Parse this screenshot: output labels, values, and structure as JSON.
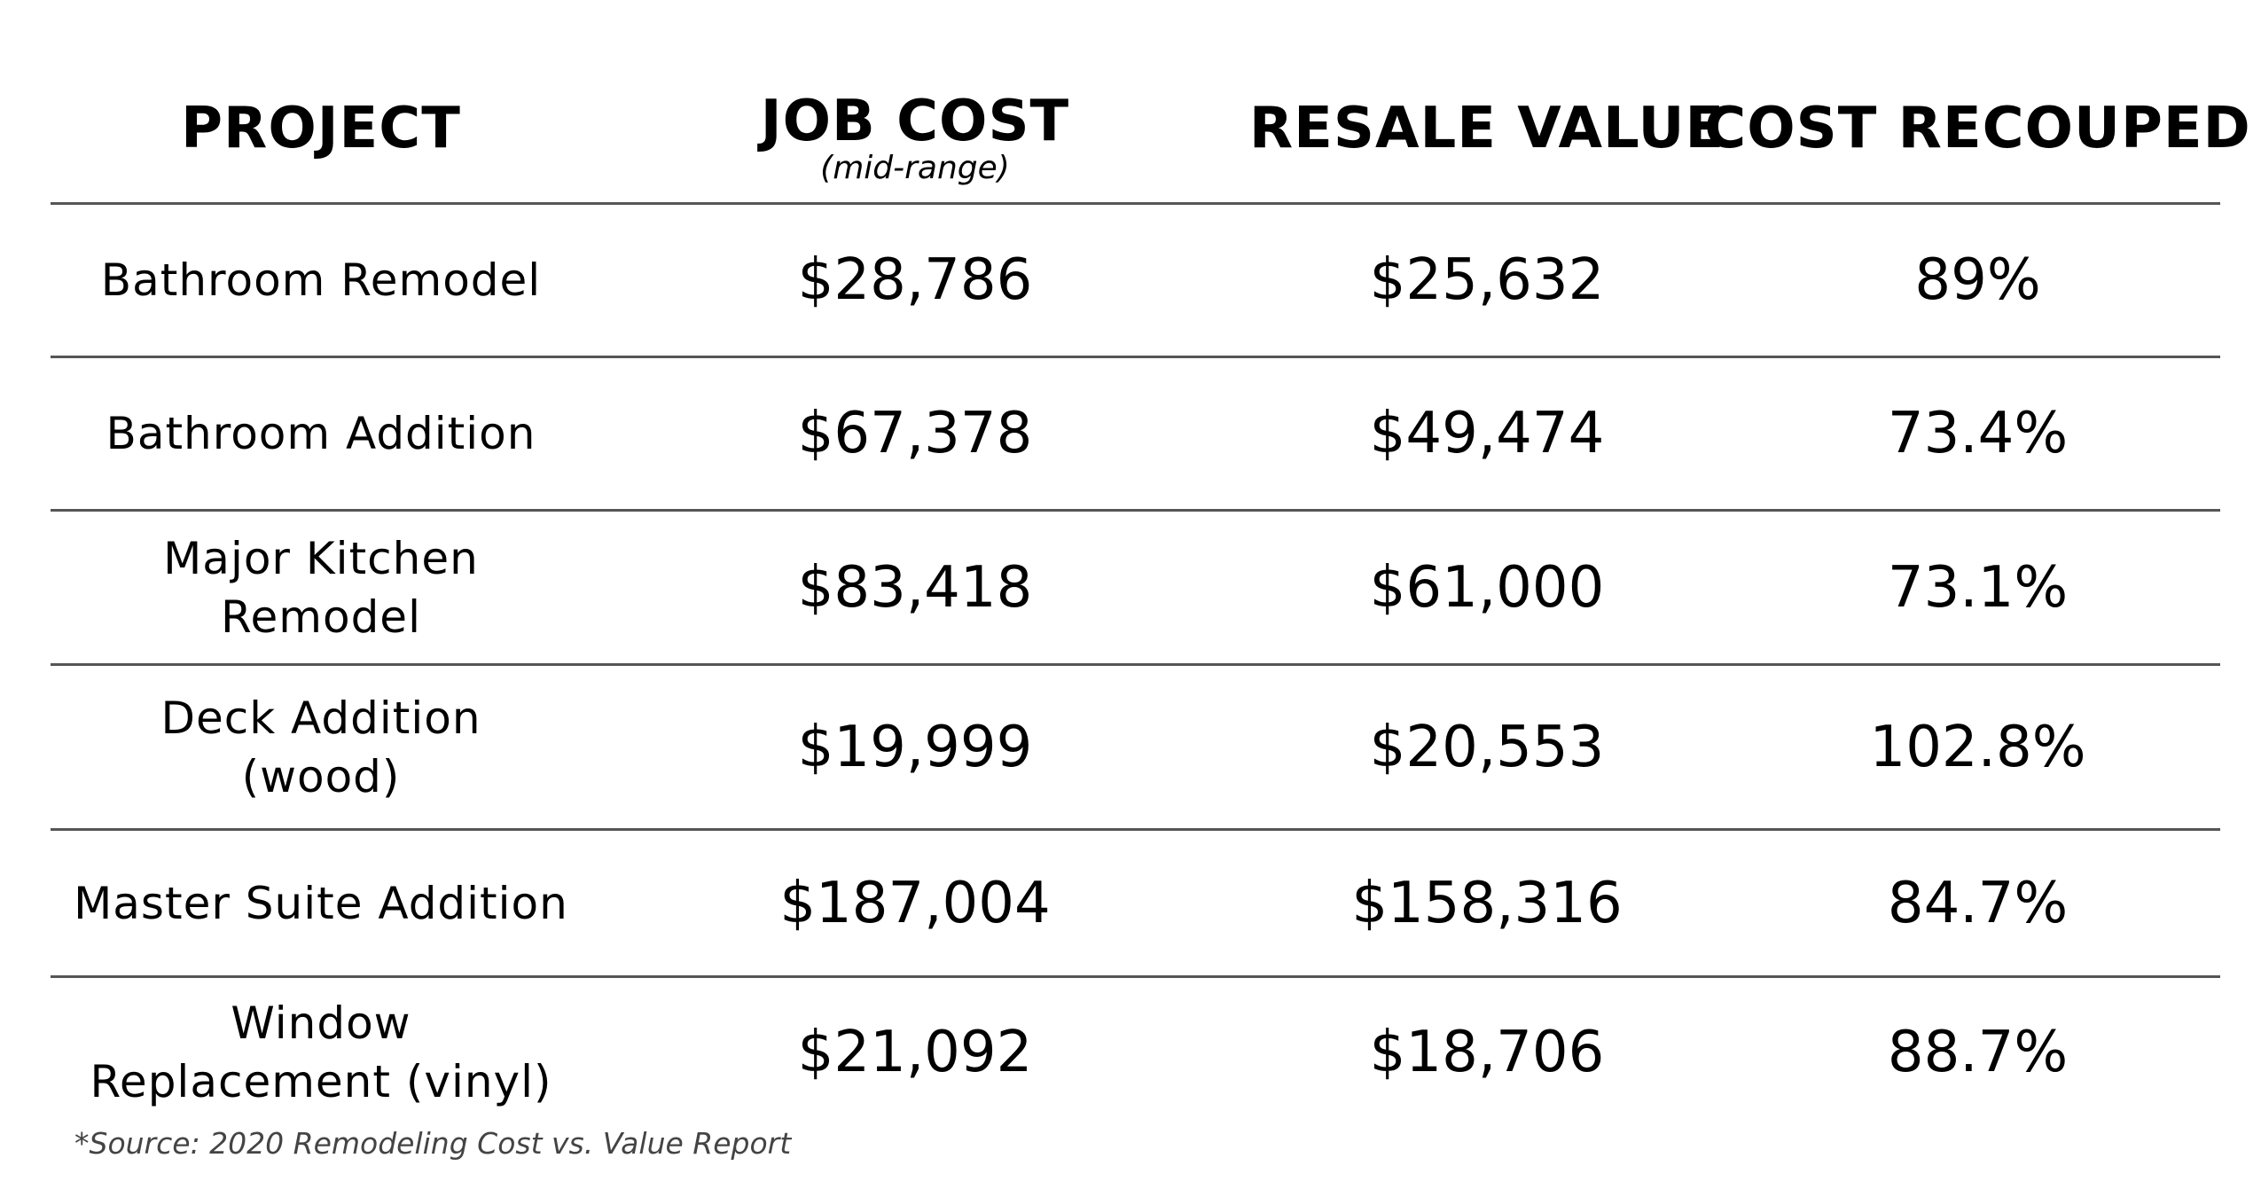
{
  "table": {
    "headers": {
      "project": "PROJECT",
      "job_cost": "JOB COST",
      "job_cost_sub": "(mid-range)",
      "resale_value": "RESALE VALUE",
      "cost_recouped": "COST RECOUPED"
    },
    "rows": [
      {
        "project_line1": "Bathroom Remodel",
        "project_line2": "",
        "job_cost": "$28,786",
        "resale_value": "$25,632",
        "cost_recouped": "89%"
      },
      {
        "project_line1": "Bathroom Addition",
        "project_line2": "",
        "job_cost": "$67,378",
        "resale_value": "$49,474",
        "cost_recouped": "73.4%"
      },
      {
        "project_line1": "Major Kitchen",
        "project_line2": "Remodel",
        "job_cost": "$83,418",
        "resale_value": "$61,000",
        "cost_recouped": "73.1%"
      },
      {
        "project_line1": "Deck Addition",
        "project_line2": "(wood)",
        "job_cost": "$19,999",
        "resale_value": "$20,553",
        "cost_recouped": "102.8%"
      },
      {
        "project_line1": "Master Suite Addition",
        "project_line2": "",
        "job_cost": "$187,004",
        "resale_value": "$158,316",
        "cost_recouped": "84.7%"
      },
      {
        "project_line1": "Window",
        "project_line2": "Replacement (vinyl)",
        "job_cost": "$21,092",
        "resale_value": "$18,706",
        "cost_recouped": "88.7%"
      }
    ]
  },
  "source_note": "*Source: 2020 Remodeling Cost vs. Value Report"
}
